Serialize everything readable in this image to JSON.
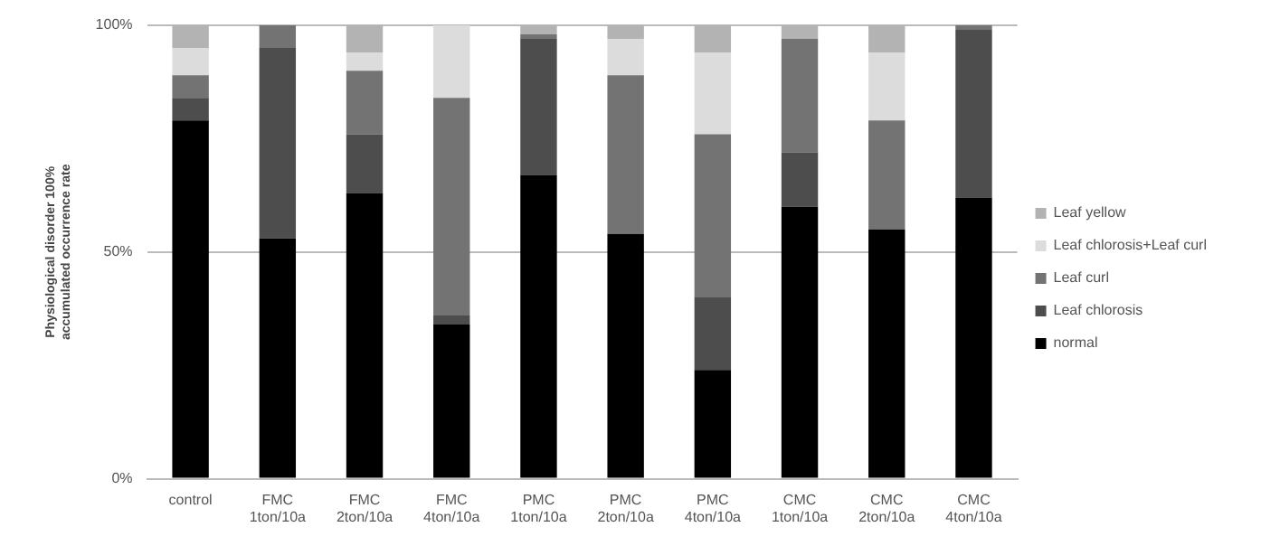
{
  "chart_data": {
    "type": "bar",
    "stacked": true,
    "ylabel": "Physiological disorder 100% accumulated occurrence rate",
    "categories": [
      "control",
      "FMC 1ton/10a",
      "FMC 2ton/10a",
      "FMC 4ton/10a",
      "PMC 1ton/10a",
      "PMC 2ton/10a",
      "PMC 4ton/10a",
      "CMC 1ton/10a",
      "CMC 2ton/10a",
      "CMC 4ton/10a"
    ],
    "series": [
      {
        "name": "normal",
        "color": "#000000",
        "values": [
          79,
          53,
          63,
          34,
          67,
          54,
          24,
          60,
          55,
          62
        ]
      },
      {
        "name": "Leaf chlorosis",
        "color": "#4d4d4d",
        "values": [
          5,
          42,
          13,
          2,
          30,
          0,
          16,
          12,
          0,
          37
        ]
      },
      {
        "name": "Leaf curl",
        "color": "#737373",
        "values": [
          5,
          5,
          14,
          48,
          1,
          35,
          36,
          25,
          24,
          1
        ]
      },
      {
        "name": "Leaf chlorosis+Leaf curl",
        "color": "#dcdcdc",
        "values": [
          6,
          0,
          4,
          16,
          0,
          8,
          18,
          0,
          15,
          0
        ]
      },
      {
        "name": "Leaf yellow",
        "color": "#b3b3b3",
        "values": [
          5,
          0,
          6,
          0,
          2,
          3,
          6,
          3,
          6,
          0
        ]
      }
    ],
    "ylim": [
      0,
      100
    ],
    "yticks": [
      {
        "value": 0,
        "label": "0%"
      },
      {
        "value": 50,
        "label": "50%"
      },
      {
        "value": 100,
        "label": "100%"
      }
    ],
    "grid": "y",
    "legend": "right"
  }
}
